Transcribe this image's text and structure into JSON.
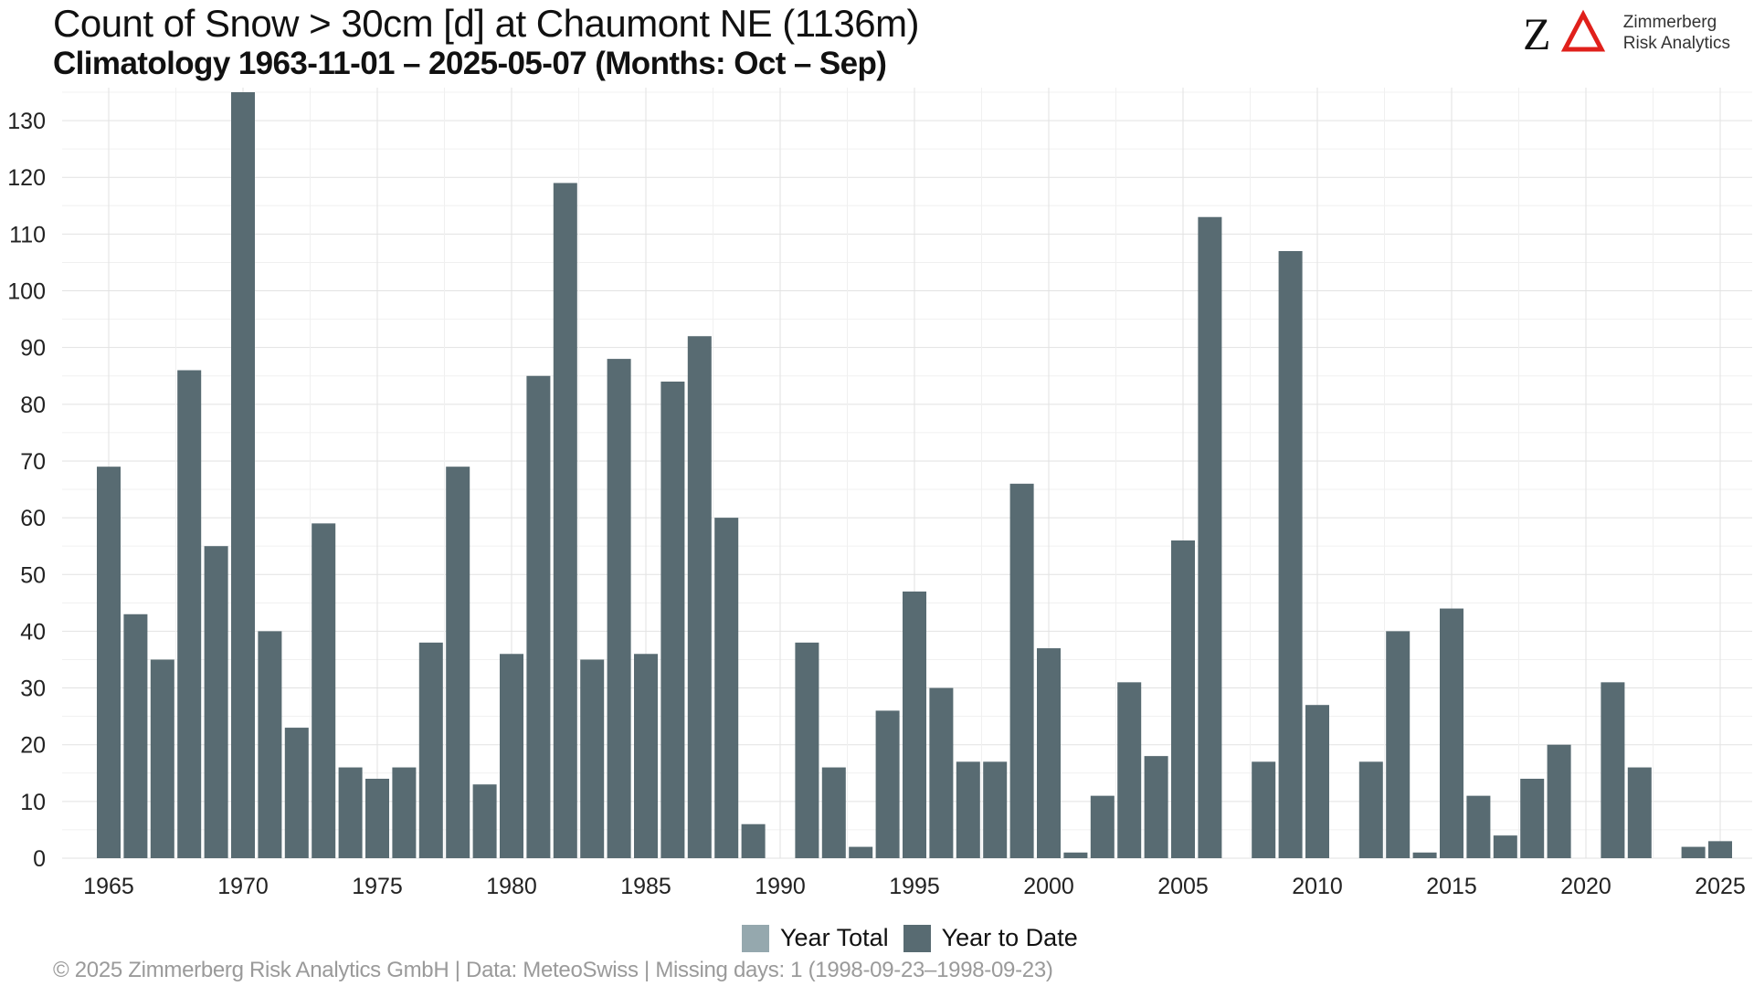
{
  "header": {
    "title": "Count of Snow > 30cm [d] at Chaumont  NE (1136m)",
    "subtitle": "Climatology 1963-11-01 – 2025-05-07 (Months: Oct – Sep)"
  },
  "logo": {
    "mark": "ZΔ",
    "line1": "Zimmerberg",
    "line2": "Risk Analytics",
    "accent_color": "#e0201b"
  },
  "legend": {
    "items": [
      {
        "label": "Year Total",
        "color": "#95a8ae"
      },
      {
        "label": "Year to Date",
        "color": "#586b72"
      }
    ]
  },
  "footer": {
    "text": "©  2025 Zimmerberg Risk Analytics GmbH | Data: MeteoSwiss | Missing days: 1 (1998-09-23–1998-09-23)"
  },
  "chart_data": {
    "type": "bar",
    "title": "Count of Snow > 30cm [d] at Chaumont  NE (1136m)",
    "subtitle": "Climatology 1963-11-01 – 2025-05-07 (Months: Oct – Sep)",
    "xlabel": "",
    "ylabel": "",
    "xlim": [
      1964,
      2025
    ],
    "ylim": [
      0,
      135
    ],
    "x_ticks": [
      1965,
      1970,
      1975,
      1980,
      1985,
      1990,
      1995,
      2000,
      2005,
      2010,
      2015,
      2020,
      2025
    ],
    "y_ticks": [
      0,
      10,
      20,
      30,
      40,
      50,
      60,
      70,
      80,
      90,
      100,
      110,
      120,
      130
    ],
    "grid": true,
    "legend_position": "bottom",
    "bar_color": "#586b72",
    "series": [
      {
        "name": "Year to Date",
        "x": [
          1965,
          1966,
          1967,
          1968,
          1969,
          1970,
          1971,
          1972,
          1973,
          1974,
          1975,
          1976,
          1977,
          1978,
          1979,
          1980,
          1981,
          1982,
          1983,
          1984,
          1985,
          1986,
          1987,
          1988,
          1989,
          1990,
          1991,
          1992,
          1993,
          1994,
          1995,
          1996,
          1997,
          1998,
          1999,
          2000,
          2001,
          2002,
          2003,
          2004,
          2005,
          2006,
          2007,
          2008,
          2009,
          2010,
          2011,
          2012,
          2013,
          2014,
          2015,
          2016,
          2017,
          2018,
          2019,
          2020,
          2021,
          2022,
          2023,
          2024,
          2025
        ],
        "values": [
          69,
          43,
          35,
          86,
          55,
          135,
          40,
          23,
          59,
          16,
          14,
          16,
          38,
          69,
          13,
          36,
          85,
          119,
          35,
          88,
          36,
          84,
          92,
          60,
          6,
          0,
          38,
          16,
          2,
          26,
          47,
          30,
          17,
          17,
          66,
          37,
          1,
          11,
          31,
          18,
          56,
          113,
          0,
          17,
          107,
          27,
          0,
          17,
          40,
          1,
          44,
          11,
          4,
          14,
          20,
          0,
          31,
          16,
          0,
          2,
          3
        ]
      }
    ]
  }
}
